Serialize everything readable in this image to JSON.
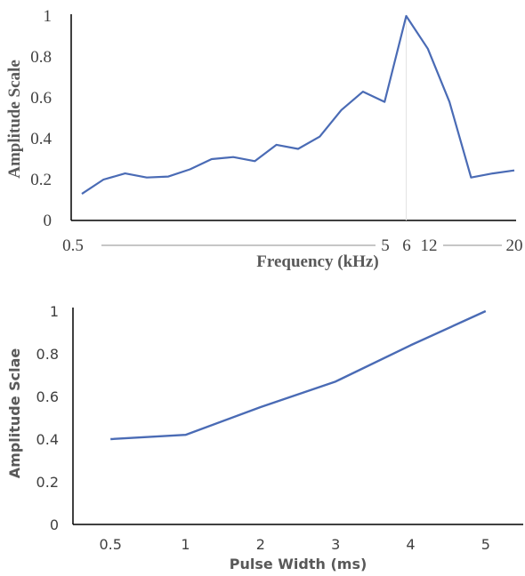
{
  "colors": {
    "line": "#4a6bb5",
    "axis": "#000000",
    "text": "#404040",
    "title": "#595959"
  },
  "chart_data": [
    {
      "type": "line",
      "title": "",
      "xlabel": "Frequency (kHz)",
      "ylabel": "Amplitude Scale",
      "ylim": [
        0,
        1
      ],
      "yticks": [
        "0",
        "0.2",
        "0.4",
        "0.6",
        "0.8",
        "1"
      ],
      "xtick_labels": [
        "0.5",
        "5",
        "6",
        "12",
        "20"
      ],
      "series": [
        {
          "values": [
            0.13,
            0.2,
            0.23,
            0.21,
            0.215,
            0.25,
            0.3,
            0.31,
            0.29,
            0.37,
            0.35,
            0.41,
            0.54,
            0.63,
            0.58,
            1.0,
            0.84,
            0.58,
            0.21,
            0.23,
            0.245
          ]
        }
      ]
    },
    {
      "type": "line",
      "title": "",
      "xlabel": "Pulse Width (ms)",
      "ylabel": "Amplitude Sclae",
      "ylim": [
        0,
        1
      ],
      "yticks": [
        "0",
        "0.2",
        "0.4",
        "0.6",
        "0.8",
        "1"
      ],
      "categories": [
        "0.5",
        "1",
        "2",
        "3",
        "4",
        "5"
      ],
      "series": [
        {
          "values": [
            0.4,
            0.42,
            0.55,
            0.67,
            0.84,
            1.0
          ]
        }
      ]
    }
  ]
}
